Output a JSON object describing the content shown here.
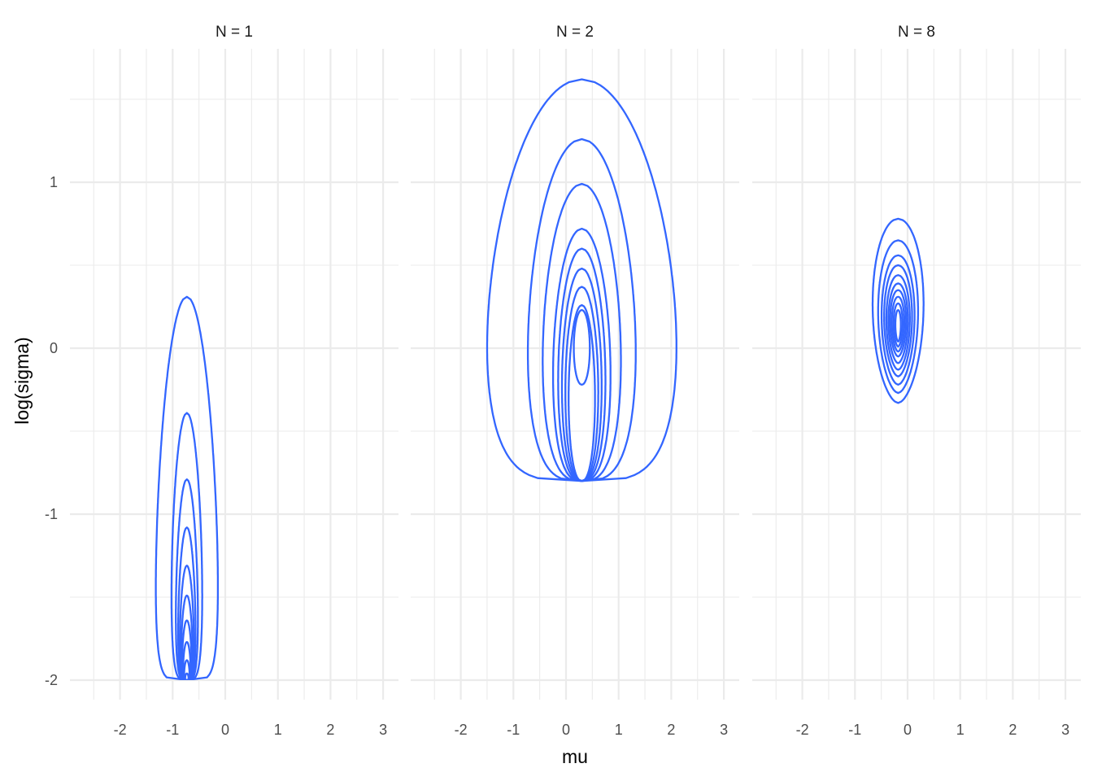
{
  "chart_data": {
    "type": "contour",
    "facets": [
      {
        "label": "N = 1",
        "levels": [
          {
            "cx": -0.73,
            "ytop": 0.31,
            "ybottom": -2.0,
            "hw": 0.85,
            "pb": 0.16
          },
          {
            "cx": -0.73,
            "ytop": -0.39,
            "ybottom": -2.0,
            "hw": 0.46,
            "pb": 0.23
          },
          {
            "cx": -0.73,
            "ytop": -0.79,
            "ybottom": -2.0,
            "hw": 0.33,
            "pb": 0.23
          },
          {
            "cx": -0.73,
            "ytop": -1.08,
            "ybottom": -2.0,
            "hw": 0.26,
            "pb": 0.23
          },
          {
            "cx": -0.73,
            "ytop": -1.31,
            "ybottom": -2.0,
            "hw": 0.21,
            "pb": 0.23
          },
          {
            "cx": -0.73,
            "ytop": -1.49,
            "ybottom": -2.0,
            "hw": 0.17,
            "pb": 0.23
          },
          {
            "cx": -0.73,
            "ytop": -1.64,
            "ybottom": -2.0,
            "hw": 0.14,
            "pb": 0.23
          },
          {
            "cx": -0.73,
            "ytop": -1.77,
            "ybottom": -2.0,
            "hw": 0.11,
            "pb": 0.23
          },
          {
            "cx": -0.73,
            "ytop": -1.88,
            "ybottom": -2.0,
            "hw": 0.08,
            "pb": 0.23
          },
          {
            "cx": -0.73,
            "ytop": -1.96,
            "ybottom": -2.0,
            "hw": 0.05,
            "pb": 0.23
          }
        ]
      },
      {
        "label": "N = 2",
        "levels": [
          {
            "cx": 0.3,
            "ytop": 1.62,
            "ybottom": -0.8,
            "hw": 2.9,
            "pb": 0.25
          },
          {
            "cx": 0.3,
            "ytop": 1.26,
            "ybottom": -0.8,
            "hw": 1.74,
            "pb": 0.3
          },
          {
            "cx": 0.3,
            "ytop": 0.99,
            "ybottom": -0.8,
            "hw": 1.31,
            "pb": 0.34
          },
          {
            "cx": 0.3,
            "ytop": 0.72,
            "ybottom": -0.8,
            "hw": 0.98,
            "pb": 0.36
          },
          {
            "cx": 0.3,
            "ytop": 0.6,
            "ybottom": -0.8,
            "hw": 0.82,
            "pb": 0.38
          },
          {
            "cx": 0.3,
            "ytop": 0.48,
            "ybottom": -0.8,
            "hw": 0.7,
            "pb": 0.4
          },
          {
            "cx": 0.3,
            "ytop": 0.37,
            "ybottom": -0.8,
            "hw": 0.59,
            "pb": 0.42
          },
          {
            "cx": 0.3,
            "ytop": 0.26,
            "ybottom": -0.8,
            "hw": 0.48,
            "pb": 0.44
          },
          {
            "cx": 0.3,
            "ytop": 0.23,
            "ybottom": -0.22,
            "hw": 0.3,
            "pb": 0.48
          }
        ]
      },
      {
        "label": "N = 8",
        "levels": [
          {
            "cx": -0.18,
            "ytop": 0.78,
            "ybottom": -0.33,
            "hw": 1.02,
            "pb": 0.58
          },
          {
            "cx": -0.18,
            "ytop": 0.65,
            "ybottom": -0.27,
            "hw": 0.8,
            "pb": 0.58
          },
          {
            "cx": -0.18,
            "ytop": 0.56,
            "ybottom": -0.22,
            "hw": 0.66,
            "pb": 0.58
          },
          {
            "cx": -0.18,
            "ytop": 0.5,
            "ybottom": -0.17,
            "hw": 0.56,
            "pb": 0.58
          },
          {
            "cx": -0.18,
            "ytop": 0.44,
            "ybottom": -0.13,
            "hw": 0.47,
            "pb": 0.58
          },
          {
            "cx": -0.18,
            "ytop": 0.39,
            "ybottom": -0.09,
            "hw": 0.39,
            "pb": 0.58
          },
          {
            "cx": -0.18,
            "ytop": 0.35,
            "ybottom": -0.05,
            "hw": 0.32,
            "pb": 0.58
          },
          {
            "cx": -0.18,
            "ytop": 0.31,
            "ybottom": -0.02,
            "hw": 0.25,
            "pb": 0.58
          },
          {
            "cx": -0.18,
            "ytop": 0.27,
            "ybottom": 0.01,
            "hw": 0.18,
            "pb": 0.58
          },
          {
            "cx": -0.18,
            "ytop": 0.23,
            "ybottom": 0.04,
            "hw": 0.11,
            "pb": 0.58
          }
        ]
      }
    ],
    "xlabel": "mu",
    "ylabel": "log(sigma)",
    "xticks": [
      -2,
      -1,
      0,
      1,
      2,
      3
    ],
    "xtick_labels": [
      "-2",
      "-1",
      "0",
      "1",
      "2",
      "3"
    ],
    "yticks": [
      -2,
      -1,
      0,
      1
    ],
    "ytick_labels": [
      "-2",
      "-1",
      "0",
      "1"
    ],
    "xlim": [
      -2.5,
      3.0
    ],
    "ylim": [
      -2.0,
      1.6
    ],
    "grid": true,
    "line_color": "#3366ff",
    "grid_color": "#ebebeb"
  }
}
